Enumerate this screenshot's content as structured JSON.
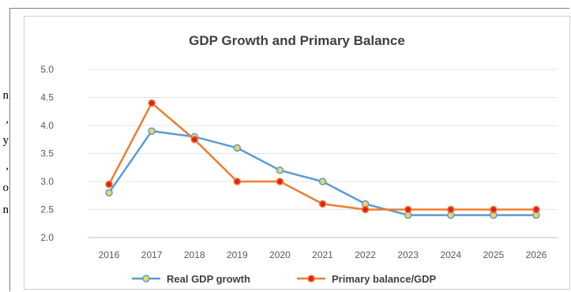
{
  "page_fragment": {
    "chars": [
      "n",
      ",",
      "y",
      ",",
      "o",
      "n"
    ]
  },
  "chart_data": {
    "type": "line",
    "title": "GDP Growth and Primary Balance",
    "xlabel": "",
    "ylabel": "",
    "categories": [
      "2016",
      "2017",
      "2018",
      "2019",
      "2020",
      "2021",
      "2022",
      "2023",
      "2024",
      "2025",
      "2026"
    ],
    "y_ticks": [
      "5.0",
      "4.5",
      "4.0",
      "3.5",
      "3.0",
      "2.5",
      "2.0"
    ],
    "ylim": [
      2.0,
      5.0
    ],
    "grid": true,
    "legend_position": "bottom",
    "series": [
      {
        "name": "Real GDP growth",
        "color": "#5b9bd5",
        "marker_color": "#f2d45c",
        "values": [
          2.8,
          3.9,
          3.8,
          3.6,
          3.2,
          3.0,
          2.6,
          2.4,
          2.4,
          2.4,
          2.4
        ]
      },
      {
        "name": "Primary balance/GDP",
        "color": "#ed7d31",
        "marker_color": "#e02020",
        "values": [
          2.95,
          4.4,
          3.75,
          3.0,
          3.0,
          2.6,
          2.5,
          2.5,
          2.5,
          2.5,
          2.5
        ]
      }
    ]
  }
}
